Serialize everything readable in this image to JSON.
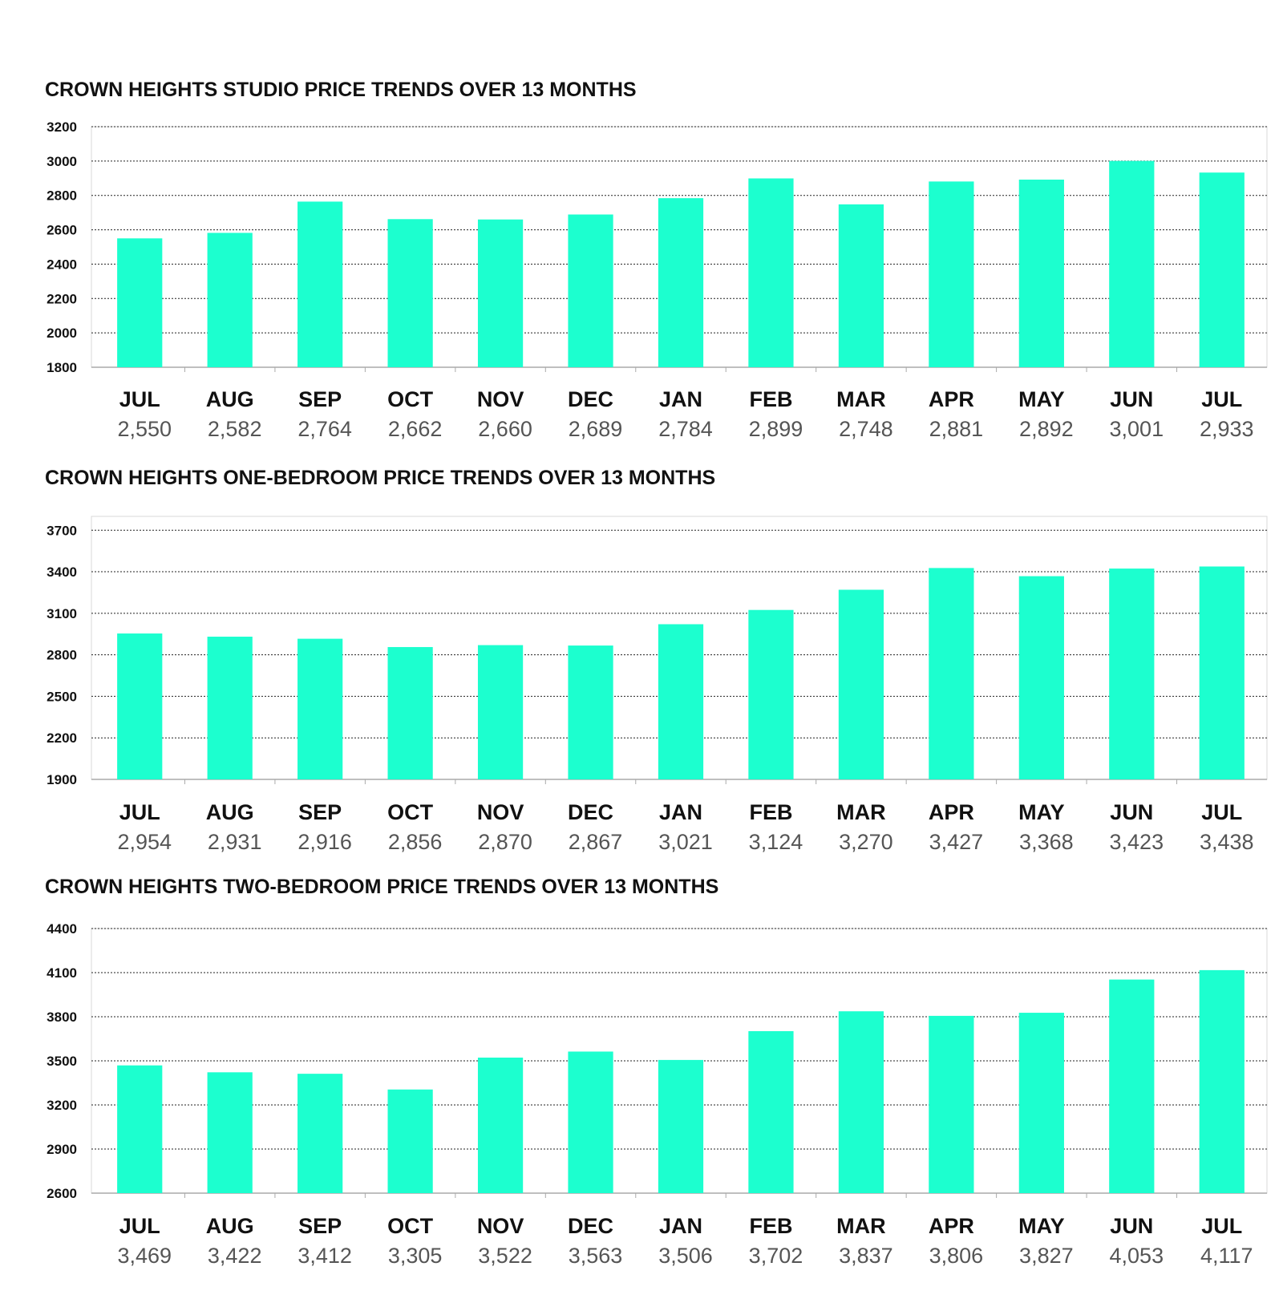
{
  "chart_data": [
    {
      "type": "bar",
      "title": "CROWN HEIGHTS STUDIO PRICE TRENDS OVER 13 MONTHS",
      "categories": [
        "JUL",
        "AUG",
        "SEP",
        "OCT",
        "NOV",
        "DEC",
        "JAN",
        "FEB",
        "MAR",
        "APR",
        "MAY",
        "JUN",
        "JUL"
      ],
      "values": [
        2550,
        2582,
        2764,
        2662,
        2660,
        2689,
        2784,
        2899,
        2748,
        2881,
        2892,
        3001,
        2933
      ],
      "value_labels": [
        "2,550",
        "2,582",
        "2,764",
        "2,662",
        "2,660",
        "2,689",
        "2,784",
        "2,899",
        "2,748",
        "2,881",
        "2,892",
        "3,001",
        "2,933"
      ],
      "yticks": [
        1800,
        2000,
        2200,
        2400,
        2600,
        2800,
        3000,
        3200
      ],
      "ylim": [
        1800,
        3200
      ],
      "grid": true,
      "bar_color": "#1cffcf"
    },
    {
      "type": "bar",
      "title": "CROWN HEIGHTS ONE-BEDROOM PRICE TRENDS OVER 13 MONTHS",
      "categories": [
        "JUL",
        "AUG",
        "SEP",
        "OCT",
        "NOV",
        "DEC",
        "JAN",
        "FEB",
        "MAR",
        "APR",
        "MAY",
        "JUN",
        "JUL"
      ],
      "values": [
        2954,
        2931,
        2916,
        2856,
        2870,
        2867,
        3021,
        3124,
        3270,
        3427,
        3368,
        3423,
        3438
      ],
      "value_labels": [
        "2,954",
        "2,931",
        "2,916",
        "2,856",
        "2,870",
        "2,867",
        "3,021",
        "3,124",
        "3,270",
        "3,427",
        "3,368",
        "3,423",
        "3,438"
      ],
      "yticks": [
        1900,
        2200,
        2500,
        2800,
        3100,
        3400,
        3700
      ],
      "ylim": [
        1900,
        3800
      ],
      "grid": true,
      "bar_color": "#1cffcf"
    },
    {
      "type": "bar",
      "title": "CROWN HEIGHTS TWO-BEDROOM PRICE TRENDS OVER 13 MONTHS",
      "categories": [
        "JUL",
        "AUG",
        "SEP",
        "OCT",
        "NOV",
        "DEC",
        "JAN",
        "FEB",
        "MAR",
        "APR",
        "MAY",
        "JUN",
        "JUL"
      ],
      "values": [
        3469,
        3422,
        3412,
        3305,
        3522,
        3563,
        3506,
        3702,
        3837,
        3806,
        3827,
        4053,
        4117
      ],
      "value_labels": [
        "3,469",
        "3,422",
        "3,412",
        "3,305",
        "3,522",
        "3,563",
        "3,506",
        "3,702",
        "3,837",
        "3,806",
        "3,827",
        "4,053",
        "4,117"
      ],
      "yticks": [
        2600,
        2900,
        3200,
        3500,
        3800,
        4100,
        4400
      ],
      "ylim": [
        2600,
        4400
      ],
      "grid": true,
      "bar_color": "#1cffcf"
    }
  ]
}
